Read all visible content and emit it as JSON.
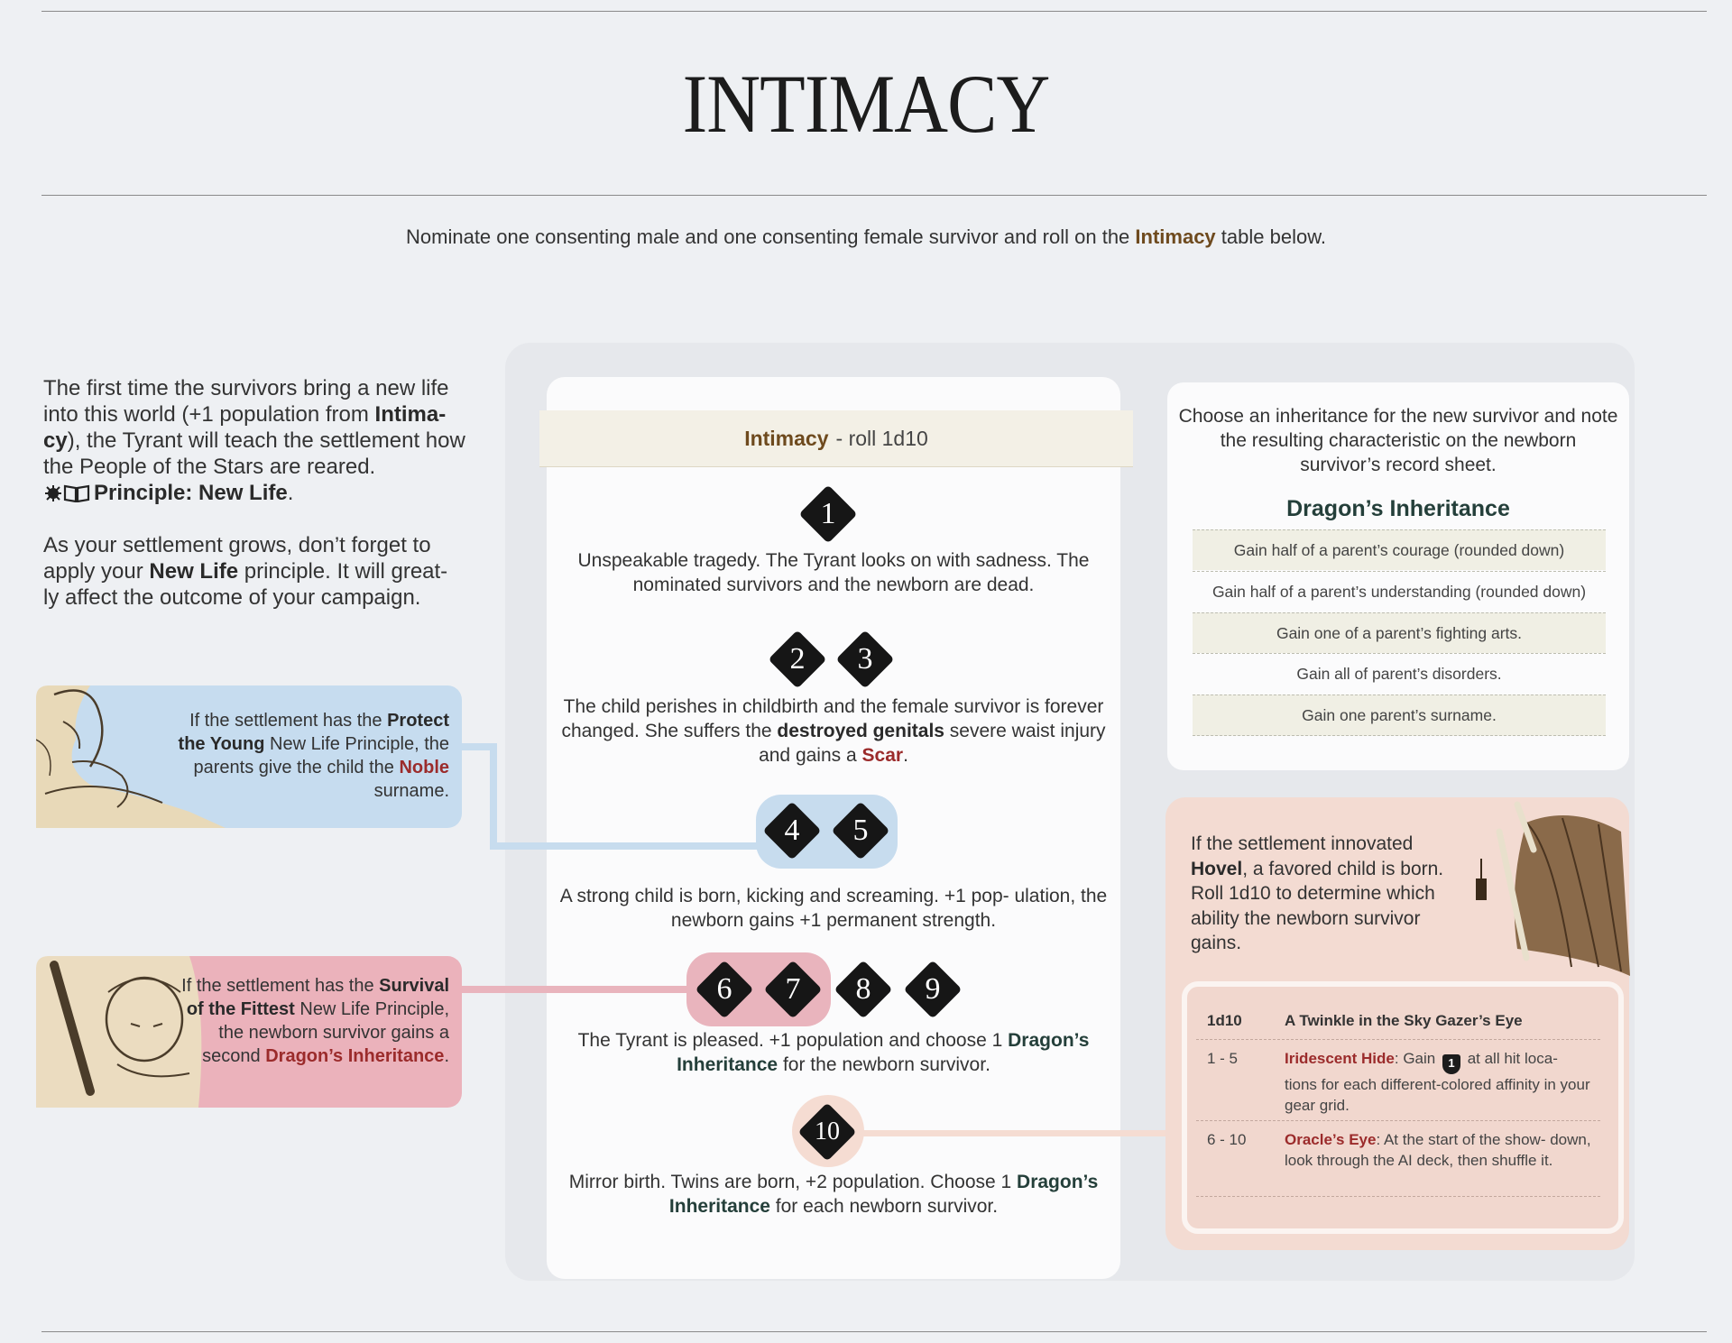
{
  "title": "INTIMACY",
  "intro": {
    "before": "Nominate one consenting male and one consenting female survivor and roll on the ",
    "highlight": "Intimacy",
    "after": " table below."
  },
  "left": {
    "para1": {
      "t1": "The first time the survivors bring a new life into this world (+1 population from ",
      "intimacy": "Intima- cy",
      "t2": "), the Tyrant will teach the settlement how the People of the Stars are reared.",
      "principle": "Principle: New Life",
      "t3": "."
    },
    "para2": {
      "t1": "As your settlement grows, don’t forget to apply your ",
      "new_life": "New Life",
      "t2": " principle. It will great- ly affect the outcome of your campaign."
    }
  },
  "protect_box": {
    "t1": "If the settlement has the ",
    "protect": "Protect the Young",
    "t2": " New Life Principle, the parents give the child the ",
    "noble": "Noble",
    "t3": " surname."
  },
  "survival_box": {
    "t1": "If the settlement has the ",
    "survival": "Survival of the Fittest",
    "t2": " New Life Principle, the newborn survivor gains a second ",
    "inheritance": "Dragon’s Inheritance",
    "t3": "."
  },
  "table": {
    "header_bold": "Intimacy",
    "header_rest": "- roll 1d10",
    "numbers": [
      "1",
      "2",
      "3",
      "4",
      "5",
      "6",
      "7",
      "8",
      "9",
      "10"
    ],
    "entries": {
      "e1": "Unspeakable tragedy. The Tyrant looks on with sadness. The nominated survivors and the newborn are dead.",
      "e2_t1": "The child perishes in childbirth and the female survivor is forever changed. She suffers the ",
      "e2_bold": "destroyed genitals",
      "e2_t2": " severe waist injury and gains a ",
      "e2_scar": "Scar",
      "e2_t3": ".",
      "e4": "A strong child is born, kicking and screaming. +1 pop- ulation, the newborn gains +1 permanent strength.",
      "e6_t1": "The Tyrant is pleased. +1 population and choose 1 ",
      "e6_bold": "Dragon’s Inheritance",
      "e6_t2": " for the newborn survivor.",
      "e10_t1": "Mirror birth. Twins are born, +2 population. Choose 1 ",
      "e10_bold": "Dragon’s Inheritance",
      "e10_t2": " for each newborn survivor."
    }
  },
  "inheritance": {
    "intro": "Choose an inheritance for the new survivor and note the resulting characteristic on the newborn survivor’s record sheet.",
    "title": "Dragon’s Inheritance",
    "rows": [
      "Gain half of a parent’s courage (rounded down)",
      "Gain half of a parent’s understanding (rounded down)",
      "Gain one of a parent’s fighting arts.",
      "Gain all of parent’s disorders.",
      "Gain one parent’s surname."
    ]
  },
  "hovel": {
    "t1": "If the settlement innovated ",
    "hovel": "Hovel",
    "t2": ", a favored child is born. Roll 1d10 to determine which ability the newborn survivor gains.",
    "table": {
      "col1": "1d10",
      "col2": "A Twinkle in the Sky Gazer’s Eye",
      "r1_range": "1 - 5",
      "r1_name": "Iridescent Hide",
      "r1_t1": ": Gain ",
      "r1_icon": "1",
      "r1_t2": " at all hit loca- tions for each different-colored affinity in your gear grid.",
      "r2_range": "6 - 10",
      "r2_name": "Oracle’s Eye",
      "r2_t1": ": At the start of the show- down, look through the AI deck, then shuffle it."
    }
  },
  "colors": {
    "blue_box": "#c6dcef",
    "pink_box": "#ebb2bb",
    "peach_box": "#f3dbd2",
    "brown_text": "#6e4a1e",
    "red_text": "#9b2b2b",
    "green_text": "#243f3a"
  }
}
